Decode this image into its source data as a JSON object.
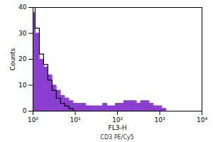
{
  "chart_data": {
    "type": "area",
    "x_label": "FL3-H",
    "y_label": "Counts",
    "annotations": [
      "CD3 PE/Cy5"
    ],
    "log": "x",
    "xlim": [
      1,
      10000
    ],
    "xticks": [
      {
        "value": 1,
        "label": "10⁰"
      },
      {
        "value": 10,
        "label": "10¹"
      },
      {
        "value": 100,
        "label": "10²"
      },
      {
        "value": 1000,
        "label": "10³"
      },
      {
        "value": 10000,
        "label": "10⁴"
      }
    ],
    "ylim": [
      0,
      40
    ],
    "yticks": [
      0,
      10,
      20,
      30,
      40
    ],
    "x": [
      1,
      1.26,
      1.58,
      2,
      2.51,
      3.16,
      3.98,
      5.01,
      6.31,
      7.94,
      10,
      12.6,
      15.8,
      20,
      25.1,
      31.6,
      39.8,
      50.1,
      63.1,
      79.4,
      100,
      126,
      158,
      200,
      251,
      316,
      398,
      501,
      631,
      794,
      1000,
      1260,
      1580,
      2000,
      2510,
      3160,
      3980,
      5010,
      6310,
      7940,
      10000
    ],
    "series": [
      {
        "type": "area",
        "color": "#8a3fd1",
        "values": [
          38,
          30,
          20,
          17,
          14,
          10,
          8,
          6,
          5,
          4,
          3,
          3,
          3,
          2,
          2,
          2,
          2,
          3,
          2,
          2,
          3,
          3,
          4,
          4,
          4,
          3,
          4,
          4,
          3,
          2,
          2,
          1,
          0,
          0,
          0,
          0,
          0,
          0,
          0,
          0,
          0
        ]
      },
      {
        "type": "line",
        "color": "#000000",
        "values": [
          40,
          32,
          22,
          18,
          12,
          8,
          5,
          3,
          2,
          1,
          0,
          0,
          0,
          0,
          0,
          0,
          0,
          0,
          0,
          0,
          0,
          0,
          0,
          0,
          0,
          0,
          0,
          0,
          0,
          0,
          0,
          0,
          0,
          0,
          0,
          0,
          0,
          0,
          0,
          0,
          0
        ]
      }
    ]
  }
}
